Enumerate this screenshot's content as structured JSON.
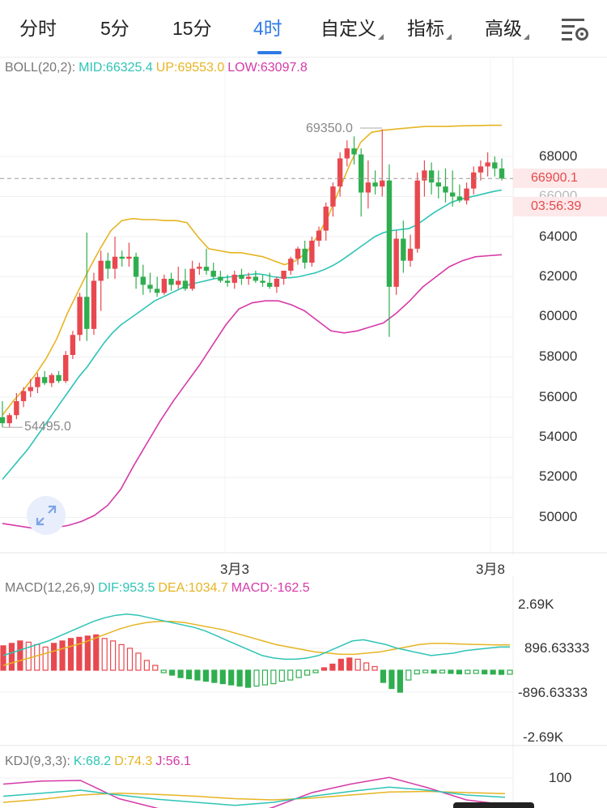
{
  "tabs": [
    {
      "label": "分时",
      "dropdown": false,
      "active": false
    },
    {
      "label": "5分",
      "dropdown": false,
      "active": false
    },
    {
      "label": "15分",
      "dropdown": false,
      "active": false
    },
    {
      "label": "4时",
      "dropdown": false,
      "active": true
    },
    {
      "label": "自定义",
      "dropdown": true,
      "active": false
    },
    {
      "label": "指标",
      "dropdown": true,
      "active": false
    },
    {
      "label": "高级",
      "dropdown": true,
      "active": false
    }
  ],
  "settings_icon": "chart-settings-icon",
  "boll": {
    "title": "BOLL(20,2):",
    "mid": "MID:66325.4",
    "up": "UP:69553.0",
    "low": "LOW:63097.8"
  },
  "price_axis": [
    "68000",
    "66000",
    "64000",
    "62000",
    "60000",
    "58000",
    "56000",
    "54000",
    "52000",
    "50000"
  ],
  "current_price": "66900.1",
  "countdown": "03:56:39",
  "high_marker": "69350.0",
  "low_marker": "54495.0",
  "dates": [
    "3月3",
    "3月8"
  ],
  "macd": {
    "title": "MACD(12,26,9)",
    "dif": "DIF:953.5",
    "dea": "DEA:1034.7",
    "macd": "MACD:-162.5"
  },
  "macd_axis": [
    "2.69K",
    "896.63333",
    "-896.63333",
    "-2.69K"
  ],
  "kdj": {
    "title": "KDJ(9,3,3):",
    "k": "K:68.2",
    "d": "D:74.3",
    "j": "J:56.1"
  },
  "kdj_axis": [
    "100"
  ],
  "colors": {
    "up": "#e8484f",
    "down": "#2fae4f",
    "mid": "#2ec4b6",
    "upper": "#e6b422",
    "lower": "#d63aa8",
    "accent": "#2f7be6"
  },
  "chart_data": [
    {
      "type": "candlestick",
      "title": "BOLL(20,2)",
      "ylim": [
        49000,
        70000
      ],
      "candles": [
        [
          55000,
          55800,
          54495,
          54700
        ],
        [
          54700,
          55200,
          54500,
          55100
        ],
        [
          55100,
          56200,
          54900,
          55800
        ],
        [
          55800,
          56500,
          55500,
          56300
        ],
        [
          56300,
          56900,
          56000,
          56500
        ],
        [
          56500,
          57200,
          56200,
          57000
        ],
        [
          57000,
          57300,
          56600,
          56700
        ],
        [
          56700,
          57200,
          56500,
          57100
        ],
        [
          57100,
          57300,
          56700,
          56800
        ],
        [
          56800,
          58300,
          56700,
          58100
        ],
        [
          58100,
          59300,
          57900,
          59100
        ],
        [
          59100,
          61200,
          58800,
          61000
        ],
        [
          61000,
          64200,
          58800,
          59400
        ],
        [
          59400,
          62200,
          59100,
          61800
        ],
        [
          61800,
          63300,
          60300,
          62800
        ],
        [
          62800,
          63200,
          61900,
          62400
        ],
        [
          62400,
          64000,
          61900,
          63000
        ],
        [
          63000,
          63300,
          62500,
          62900
        ],
        [
          62900,
          63700,
          62500,
          63000
        ],
        [
          63000,
          63200,
          61400,
          62000
        ],
        [
          62000,
          62600,
          61100,
          61600
        ],
        [
          61600,
          62200,
          61200,
          61400
        ],
        [
          61400,
          62000,
          61000,
          61200
        ],
        [
          61200,
          62100,
          61100,
          61900
        ],
        [
          61900,
          62200,
          61300,
          61600
        ],
        [
          61600,
          62500,
          61400,
          61800
        ],
        [
          61800,
          62400,
          61300,
          61400
        ],
        [
          61400,
          62800,
          61300,
          62400
        ],
        [
          62400,
          62700,
          62100,
          62500
        ],
        [
          62500,
          63400,
          62100,
          62300
        ],
        [
          62300,
          62700,
          61900,
          62000
        ],
        [
          62000,
          62300,
          61700,
          61800
        ],
        [
          61800,
          62100,
          61500,
          61700
        ],
        [
          61700,
          62300,
          61400,
          62100
        ],
        [
          62100,
          62400,
          61600,
          61900
        ],
        [
          61900,
          62200,
          61600,
          62000
        ],
        [
          62000,
          62300,
          61700,
          61800
        ],
        [
          61800,
          62100,
          61500,
          61700
        ],
        [
          61700,
          62200,
          61400,
          61500
        ],
        [
          61500,
          62000,
          61200,
          61900
        ],
        [
          61900,
          62300,
          61600,
          62300
        ],
        [
          62300,
          63000,
          62100,
          62900
        ],
        [
          62900,
          63500,
          62600,
          63400
        ],
        [
          63400,
          63800,
          62400,
          62700
        ],
        [
          62700,
          64000,
          62500,
          63800
        ],
        [
          63800,
          64500,
          63500,
          64300
        ],
        [
          64300,
          65700,
          63800,
          65500
        ],
        [
          65500,
          66700,
          65000,
          66500
        ],
        [
          66500,
          68200,
          66000,
          67900
        ],
        [
          67900,
          68800,
          67500,
          68400
        ],
        [
          68400,
          69000,
          67600,
          68100
        ],
        [
          68100,
          68400,
          65000,
          66200
        ],
        [
          66200,
          67800,
          65400,
          66700
        ],
        [
          66700,
          67300,
          66100,
          66500
        ],
        [
          66500,
          69350,
          66000,
          66800
        ],
        [
          66800,
          67600,
          59000,
          61500
        ],
        [
          61500,
          64300,
          61100,
          63900
        ],
        [
          63900,
          64800,
          62200,
          62800
        ],
        [
          62800,
          64100,
          62500,
          63400
        ],
        [
          63400,
          67200,
          63200,
          66800
        ],
        [
          66800,
          67800,
          66000,
          67300
        ],
        [
          67300,
          67700,
          66100,
          66700
        ],
        [
          66700,
          67300,
          65900,
          66500
        ],
        [
          66500,
          67400,
          65700,
          66200
        ],
        [
          66200,
          67300,
          65500,
          66000
        ],
        [
          66000,
          66600,
          65700,
          65800
        ],
        [
          65800,
          66700,
          65600,
          66400
        ],
        [
          66400,
          67500,
          66100,
          67200
        ],
        [
          67200,
          67800,
          66800,
          67500
        ],
        [
          67500,
          68200,
          67000,
          67700
        ],
        [
          67700,
          68000,
          67000,
          67400
        ],
        [
          67400,
          67900,
          66800,
          66900
        ]
      ],
      "mid": [
        51900,
        52400,
        52900,
        53400,
        54000,
        54600,
        55200,
        55800,
        56400,
        57000,
        57500,
        58100,
        58700,
        59200,
        59600,
        59900,
        60200,
        60500,
        60800,
        61000,
        61200,
        61400,
        61600,
        61700,
        61800,
        61900,
        61950,
        62000,
        62050,
        62100,
        62150,
        62100,
        62000,
        61950,
        61950,
        62000,
        62100,
        62200,
        62350,
        62550,
        62800,
        63100,
        63400,
        63700,
        64000,
        64200,
        64300,
        64350,
        64400,
        64600,
        64900,
        65200,
        65450,
        65700,
        65850,
        65950,
        66050,
        66150,
        66250,
        66325
      ],
      "upper": [
        55100,
        55800,
        56400,
        57100,
        57900,
        58900,
        60200,
        61300,
        62400,
        63400,
        64300,
        64800,
        64900,
        64850,
        64850,
        64800,
        64800,
        64700,
        64000,
        63400,
        63300,
        63200,
        63200,
        63100,
        63000,
        62800,
        62600,
        62800,
        63200,
        64000,
        65000,
        66300,
        67600,
        68700,
        69200,
        69300,
        69350,
        69400,
        69450,
        69500,
        69500,
        69500,
        69520,
        69530,
        69540,
        69550,
        69553
      ],
      "lower": [
        49700,
        49600,
        49500,
        49400,
        49500,
        49600,
        49800,
        50100,
        50600,
        51400,
        52600,
        53700,
        54800,
        55800,
        56700,
        57600,
        58600,
        59600,
        60400,
        60700,
        60800,
        60800,
        60600,
        60300,
        59800,
        59300,
        59200,
        59300,
        59500,
        59700,
        60200,
        60800,
        61500,
        62000,
        62500,
        62800,
        63000,
        63050,
        63098
      ],
      "annotations": {
        "high": 69350.0,
        "low": 54495.0,
        "last": 66900.1
      }
    },
    {
      "type": "bar",
      "title": "MACD(12,26,9)",
      "ylim": [
        -2690,
        2690
      ],
      "histogram": [
        1000,
        1100,
        1200,
        1150,
        1050,
        950,
        1100,
        1200,
        1300,
        1350,
        1400,
        1450,
        1300,
        1200,
        1050,
        900,
        700,
        400,
        200,
        -100,
        -200,
        -300,
        -350,
        -400,
        -450,
        -500,
        -550,
        -600,
        -650,
        -700,
        -650,
        -600,
        -550,
        -450,
        -400,
        -300,
        -200,
        -100,
        100,
        250,
        450,
        500,
        450,
        300,
        150,
        -500,
        -750,
        -900,
        -400,
        -150,
        -100,
        -120,
        -110,
        -130,
        -150,
        -140,
        -130,
        -150,
        -160,
        -170,
        -162.5
      ],
      "dif": [
        600,
        750,
        900,
        1050,
        1200,
        1400,
        1600,
        1800,
        2000,
        2150,
        2250,
        2300,
        2250,
        2150,
        2050,
        1950,
        1850,
        1750,
        1600,
        1400,
        1200,
        1000,
        800,
        600,
        500,
        450,
        450,
        500,
        600,
        800,
        1000,
        1200,
        1250,
        1150,
        1050,
        900,
        800,
        700,
        600,
        650,
        700,
        800,
        850,
        900,
        950,
        953.5
      ],
      "dea": [
        200,
        350,
        500,
        650,
        800,
        950,
        1100,
        1300,
        1500,
        1700,
        1850,
        1950,
        2000,
        2000,
        1950,
        1850,
        1750,
        1650,
        1500,
        1350,
        1200,
        1050,
        950,
        850,
        750,
        700,
        650,
        650,
        700,
        750,
        850,
        950,
        1050,
        1100,
        1100,
        1080,
        1060,
        1050,
        1040,
        1034.7
      ]
    },
    {
      "type": "line",
      "title": "KDJ(9,3,3)",
      "ylim": [
        0,
        100
      ],
      "k": [
        70,
        75,
        80,
        72,
        65,
        60,
        55,
        60,
        70,
        78,
        85,
        80,
        72,
        68.2
      ],
      "d": [
        60,
        65,
        72,
        75,
        73,
        70,
        66,
        64,
        67,
        72,
        77,
        78,
        76,
        74.3
      ],
      "j": [
        90,
        95,
        96,
        66,
        50,
        40,
        33,
        52,
        76,
        90,
        101,
        84,
        64,
        56.1
      ]
    }
  ]
}
